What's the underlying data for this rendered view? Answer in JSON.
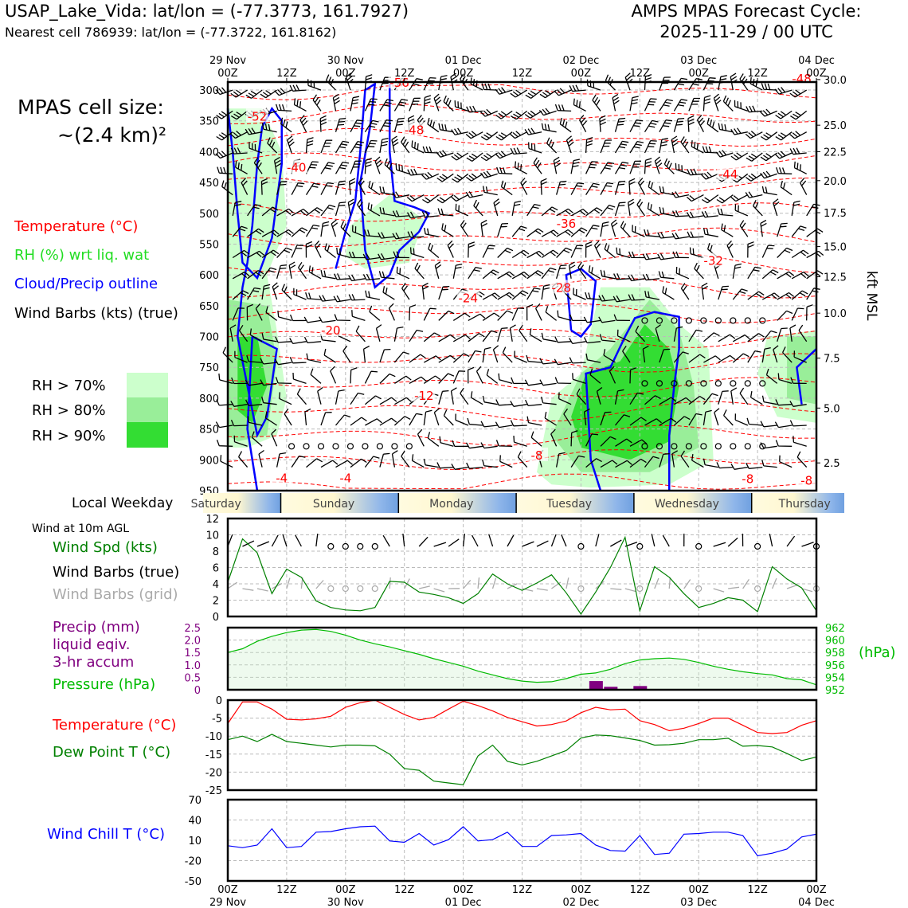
{
  "header": {
    "title": "USAP_Lake_Vida: lat/lon = (-77.3773, 161.7927)",
    "subtitle": "Nearest cell 786939: lat/lon = (-77.3722, 161.8162)",
    "cycle_title": "AMPS MPAS Forecast Cycle:",
    "cycle_date": "2025-11-29 / 00 UTC",
    "cell_size_label": "MPAS cell size:",
    "cell_size_value": "~(2.4 km)²"
  },
  "legend": {
    "temperature": "Temperature (°C)",
    "rh": "RH (%) wrt liq. wat",
    "cloud": "Cloud/Precip outline",
    "barbs": "Wind Barbs (kts) (true)",
    "rh70": "RH > 70%",
    "rh80": "RH > 80%",
    "rh90": "RH > 90%",
    "local_weekday": "Local Weekday",
    "wind_10m": "Wind at 10m AGL",
    "wind_spd": "Wind Spd (kts)",
    "wind_barbs_true": "Wind Barbs (true)",
    "wind_barbs_grid": "Wind Barbs (grid)",
    "precip1": "Precip (mm)",
    "precip2": "liquid eqiv.",
    "precip3": "3-hr accum",
    "pressure": "Pressure (hPa)",
    "temp2": "Temperature (°C)",
    "dewpt": "Dew Point T (°C)",
    "windchill": "Wind Chill T (°C)",
    "hpa_unit": "(hPa)",
    "kft_unit": "kft MSL"
  },
  "colors": {
    "temperature": "#ff0000",
    "rh_label": "#22dd22",
    "cloud": "#0000ff",
    "rh70": "#ccffcc",
    "rh80": "#99ee99",
    "rh90": "#33dd33",
    "wind_spd": "#008000",
    "grid_barb": "#aaaaaa",
    "precip": "#800080",
    "pressure": "#00bb00",
    "dewpt": "#008000",
    "windchill": "#0000ff"
  },
  "chart_data": [
    {
      "type": "heatmap",
      "name": "time-pressure cross section",
      "top_ticks": [
        {
          "t": 0,
          "l1": "29 Nov",
          "l2": "00Z"
        },
        {
          "t": 12,
          "l1": "",
          "l2": "12Z"
        },
        {
          "t": 24,
          "l1": "30 Nov",
          "l2": "00Z"
        },
        {
          "t": 36,
          "l1": "",
          "l2": "12Z"
        },
        {
          "t": 48,
          "l1": "01 Dec",
          "l2": "00Z"
        },
        {
          "t": 60,
          "l1": "",
          "l2": "12Z"
        },
        {
          "t": 72,
          "l1": "02 Dec",
          "l2": "00Z"
        },
        {
          "t": 84,
          "l1": "",
          "l2": "12Z"
        },
        {
          "t": 96,
          "l1": "03 Dec",
          "l2": "00Z"
        },
        {
          "t": 108,
          "l1": "",
          "l2": "12Z"
        },
        {
          "t": 120,
          "l1": "04 Dec",
          "l2": "00Z"
        }
      ],
      "pressure_ticks": [
        300,
        350,
        400,
        450,
        500,
        550,
        600,
        650,
        700,
        750,
        800,
        850,
        900,
        950
      ],
      "kft_ticks": [
        "30.0",
        "25.0",
        "22.5",
        "20.0",
        "17.5",
        "15.0",
        "12.5",
        "10.0",
        "7.5",
        "5.0",
        "2.5"
      ],
      "kft_pressures": [
        283,
        357,
        400,
        447,
        499,
        554,
        603,
        662,
        735,
        816,
        905
      ],
      "temperature_labels": [
        {
          "t": 35,
          "p": 288,
          "v": "-56"
        },
        {
          "t": 6,
          "p": 343,
          "v": "-52"
        },
        {
          "t": 38,
          "p": 365,
          "v": "-48"
        },
        {
          "t": 117,
          "p": 282,
          "v": "-48"
        },
        {
          "t": 102,
          "p": 437,
          "v": "-44"
        },
        {
          "t": 14,
          "p": 426,
          "v": "-40"
        },
        {
          "t": 69,
          "p": 517,
          "v": "-36"
        },
        {
          "t": 99,
          "p": 577,
          "v": "-32"
        },
        {
          "t": 68,
          "p": 621,
          "v": "-28"
        },
        {
          "t": 49,
          "p": 638,
          "v": "-24"
        },
        {
          "t": 21,
          "p": 690,
          "v": "-20"
        },
        {
          "t": 40,
          "p": 796,
          "v": "-12"
        },
        {
          "t": 63,
          "p": 893,
          "v": "-8"
        },
        {
          "t": 106,
          "p": 931,
          "v": "-8"
        },
        {
          "t": 118,
          "p": 934,
          "v": "-8"
        },
        {
          "t": 11,
          "p": 930,
          "v": "-4"
        },
        {
          "t": 24,
          "p": 930,
          "v": "-4"
        }
      ],
      "weekdays": [
        "Saturday",
        "Sunday",
        "Monday",
        "Tuesday",
        "Wednesday",
        "Thursday"
      ]
    },
    {
      "type": "line",
      "name": "10m wind speed",
      "y_ticks": [
        0,
        2,
        4,
        6,
        8,
        10,
        12
      ],
      "ylim": [
        0,
        12
      ],
      "x": [
        0,
        3,
        6,
        9,
        12,
        15,
        18,
        21,
        24,
        27,
        30,
        33,
        36,
        39,
        42,
        45,
        48,
        51,
        54,
        57,
        60,
        63,
        66,
        69,
        72,
        75,
        78,
        81,
        84,
        87,
        90,
        93,
        96,
        99,
        102,
        105,
        108,
        111,
        114,
        117,
        120
      ],
      "values": [
        4.2,
        9.5,
        7.8,
        2.8,
        5.8,
        4.8,
        1.9,
        1.1,
        0.8,
        0.7,
        1.1,
        4.3,
        4.2,
        3.0,
        2.7,
        2.3,
        1.6,
        2.8,
        5.2,
        4.0,
        3.2,
        4.1,
        5.1,
        2.9,
        0.3,
        3.0,
        6.0,
        9.7,
        0.7,
        6.1,
        4.8,
        2.8,
        1.1,
        1.6,
        2.3,
        2.0,
        0.6,
        6.1,
        4.6,
        3.5,
        0.7
      ]
    },
    {
      "type": "bar",
      "name": "3-hr precip and pressure",
      "precip_ticks": [
        0,
        0.5,
        1.0,
        1.5,
        2.0,
        2.5
      ],
      "precip_tick_labels": [
        "0",
        "0.5",
        "1.0",
        "1.5",
        "2.0",
        "2.5"
      ],
      "precip_ylim": [
        0,
        2.5
      ],
      "precip_x": [
        75,
        78,
        84
      ],
      "precip_values": [
        0.35,
        0.12,
        0.15
      ],
      "pressure_ticks": [
        952,
        954,
        956,
        958,
        960,
        962
      ],
      "pressure_ylim": [
        952,
        962
      ],
      "pressure_x": [
        0,
        3,
        6,
        9,
        12,
        15,
        18,
        21,
        24,
        27,
        30,
        33,
        36,
        39,
        42,
        45,
        48,
        51,
        54,
        57,
        60,
        63,
        66,
        69,
        72,
        75,
        78,
        81,
        84,
        87,
        90,
        93,
        96,
        99,
        102,
        105,
        108,
        111,
        114,
        117,
        120
      ],
      "pressure_values": [
        958,
        958.6,
        959.8,
        960.6,
        961.2,
        961.6,
        961.7,
        961.4,
        960.8,
        960.0,
        959.4,
        958.9,
        958.3,
        957.7,
        957.0,
        956.4,
        955.8,
        955.0,
        954.4,
        953.8,
        953.4,
        953.2,
        953.3,
        953.8,
        954.5,
        954.7,
        955.3,
        956.2,
        956.8,
        957.0,
        957.1,
        956.9,
        956.4,
        955.8,
        955.3,
        954.9,
        954.6,
        954.4,
        953.8,
        953.6,
        952.8
      ]
    },
    {
      "type": "line",
      "name": "2m temperature and dew point",
      "y_ticks": [
        0,
        -5,
        -10,
        -15,
        -20,
        -25
      ],
      "ylim": [
        -25,
        0
      ],
      "x": [
        0,
        3,
        6,
        9,
        12,
        15,
        18,
        21,
        24,
        27,
        30,
        33,
        36,
        39,
        42,
        45,
        48,
        51,
        54,
        57,
        60,
        63,
        66,
        69,
        72,
        75,
        78,
        81,
        84,
        87,
        90,
        93,
        96,
        99,
        102,
        105,
        108,
        111,
        114,
        117,
        120
      ],
      "series": [
        {
          "name": "Temperature (°C)",
          "color": "#ff0000",
          "values": [
            -6.5,
            -0.5,
            -0.5,
            -2.5,
            -5.3,
            -5.5,
            -5.2,
            -4.5,
            -2.0,
            -0.7,
            0.0,
            -2.0,
            -4.0,
            -5.5,
            -4.8,
            -2.5,
            -0.3,
            -1.5,
            -3.0,
            -4.8,
            -6.0,
            -7.2,
            -6.8,
            -5.8,
            -3.5,
            -2.0,
            -2.7,
            -2.5,
            -5.7,
            -6.8,
            -8.5,
            -7.8,
            -6.5,
            -5.0,
            -5.0,
            -7.0,
            -9.0,
            -9.3,
            -9.0,
            -7.0,
            -5.7
          ]
        },
        {
          "name": "Dew Point T (°C)",
          "color": "#008000",
          "values": [
            -11.0,
            -10.0,
            -11.5,
            -9.5,
            -11.5,
            -12.0,
            -12.5,
            -13.0,
            -12.5,
            -12.5,
            -12.7,
            -15.0,
            -19.0,
            -19.5,
            -22.5,
            -23.0,
            -23.5,
            -15.5,
            -12.5,
            -17.0,
            -18.0,
            -17.0,
            -15.5,
            -14.0,
            -10.5,
            -9.7,
            -9.9,
            -10.5,
            -11.2,
            -12.5,
            -12.4,
            -12.0,
            -11.0,
            -11.0,
            -10.6,
            -12.8,
            -12.6,
            -13.0,
            -14.8,
            -16.8,
            -15.8
          ]
        }
      ]
    },
    {
      "type": "line",
      "name": "wind chill",
      "y_ticks": [
        70,
        40,
        10,
        -20,
        -50
      ],
      "ylim": [
        -50,
        70
      ],
      "x": [
        0,
        3,
        6,
        9,
        12,
        15,
        18,
        21,
        24,
        27,
        30,
        33,
        36,
        39,
        42,
        45,
        48,
        51,
        54,
        57,
        60,
        63,
        66,
        69,
        72,
        75,
        78,
        81,
        84,
        87,
        90,
        93,
        96,
        99,
        102,
        105,
        108,
        111,
        114,
        117,
        120
      ],
      "values": [
        2,
        -1,
        3,
        27,
        -1,
        1,
        22,
        23,
        27,
        30,
        31,
        9,
        7,
        20,
        3,
        11,
        30,
        9,
        11,
        22,
        1,
        1,
        17,
        18,
        20,
        3,
        -5,
        -6,
        17,
        -11,
        -9,
        19,
        20,
        22,
        22,
        17,
        -13,
        -9,
        -3,
        15,
        19
      ]
    }
  ]
}
